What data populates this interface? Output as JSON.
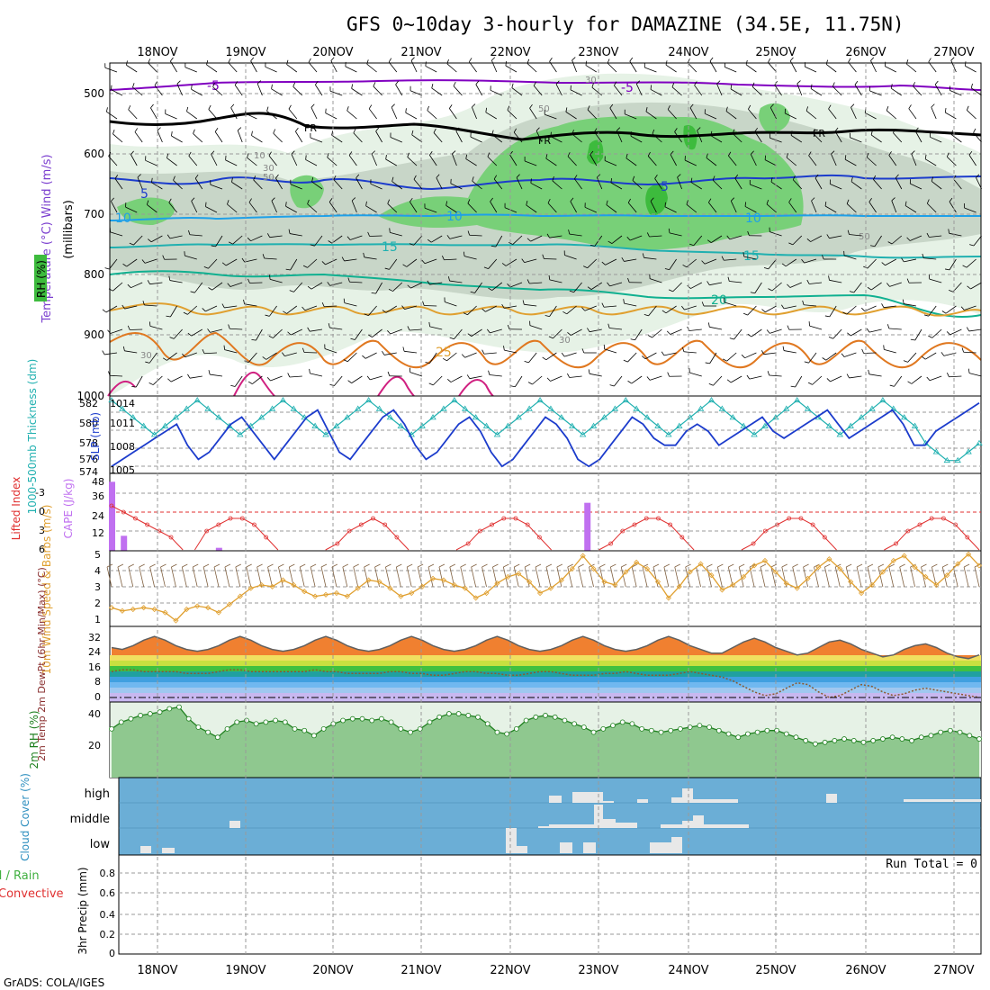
{
  "title": "GFS 0~10day 3-hourly for DAMAZINE (34.5E, 11.75N)",
  "footer": "GrADS: COLA/IGES",
  "run_total": "Run Total = 0",
  "date_labels": [
    "18NOV",
    "19NOV",
    "20NOV",
    "21NOV",
    "22NOV",
    "23NOV",
    "24NOV",
    "25NOV",
    "26NOV",
    "27NOV"
  ],
  "colors": {
    "rh_light": "#e5f2e5",
    "rh_mid": "#c8d6c8",
    "rh_green": "#78d078",
    "rh_dark": "#3dbb3d",
    "cloud_blue": "#6baed6",
    "purple": "#8000c0",
    "thick_cyan": "#20b0b0",
    "slp_blue": "#1c3ccc",
    "lifted_red": "#e03030",
    "cape_purple": "#c070f0",
    "wind_orange": "#e0a030"
  },
  "chart_data": [
    {
      "type": "area",
      "panel": "pressure-time cross section",
      "ylabel": "Temperature (°C)  Wind (m/s)",
      "ylabel2": "(millibars)",
      "legend": "RH (%)",
      "yticks": [
        "500",
        "600",
        "700",
        "800",
        "900",
        "1000"
      ],
      "ylim": [
        1000,
        450
      ],
      "temperature_isotherm_labels": [
        "-5",
        "FR",
        "5",
        "10",
        "15",
        "20",
        "25"
      ],
      "rh_contour_labels": [
        "30",
        "50",
        "10",
        "30",
        "50",
        "50",
        "30",
        "30"
      ]
    },
    {
      "type": "line",
      "panel": "thickness and sea level pressure",
      "ylabel_left": "1000-500mb Thickness (dm)",
      "ylabel_right": "SLP (mb)",
      "yticks_left": [
        "582",
        "580",
        "578",
        "576",
        "574"
      ],
      "yticks_right": [
        "1014",
        "1011",
        "1008",
        "1005"
      ],
      "series": [
        {
          "name": "Thickness",
          "units": "dm",
          "values": [
            582,
            581,
            580,
            579,
            578,
            579,
            580,
            581,
            582,
            581,
            580,
            579,
            578,
            579,
            580,
            581,
            582,
            581,
            580,
            579,
            578,
            579,
            580,
            581,
            582,
            581,
            580,
            579,
            578,
            579,
            580,
            581,
            582,
            581,
            580,
            579,
            578,
            579,
            580,
            581,
            582,
            581,
            580,
            579,
            578,
            579,
            580,
            581,
            582,
            581,
            580,
            579,
            578,
            579,
            580,
            581,
            582,
            581,
            580,
            579,
            578,
            579,
            580,
            581,
            582,
            581,
            580,
            579,
            578,
            579,
            580,
            581,
            582,
            581,
            580,
            579,
            577,
            576,
            575,
            575,
            576,
            577
          ]
        },
        {
          "name": "SLP",
          "units": "mb",
          "values": [
            1005,
            1006,
            1007,
            1008,
            1009,
            1010,
            1011,
            1008,
            1006,
            1007,
            1009,
            1011,
            1012,
            1010,
            1008,
            1006,
            1008,
            1010,
            1012,
            1013,
            1010,
            1007,
            1006,
            1008,
            1010,
            1012,
            1013,
            1011,
            1008,
            1006,
            1007,
            1009,
            1011,
            1012,
            1010,
            1007,
            1005,
            1006,
            1008,
            1010,
            1012,
            1011,
            1009,
            1006,
            1005,
            1006,
            1008,
            1010,
            1012,
            1011,
            1009,
            1008,
            1008,
            1010,
            1011,
            1010,
            1008,
            1009,
            1010,
            1011,
            1012,
            1010,
            1009,
            1010,
            1011,
            1012,
            1013,
            1011,
            1009,
            1010,
            1011,
            1012,
            1013,
            1011,
            1008,
            1008,
            1010,
            1011,
            1012,
            1013,
            1014
          ]
        }
      ]
    },
    {
      "type": "bar",
      "panel": "lifted index and CAPE",
      "ylabel_left": "Lifted Index",
      "ylabel_right": "CAPE (J/kg)",
      "yticks_left": [
        "-3",
        "0",
        "3",
        "6"
      ],
      "yticks_right": [
        "48",
        "36",
        "24",
        "12"
      ],
      "cape_bars": [
        {
          "time_index": 0,
          "value": 46
        },
        {
          "time_index": 1,
          "value": 10
        },
        {
          "time_index": 9,
          "value": 2
        },
        {
          "time_index": 40,
          "value": 32
        }
      ],
      "lifted_index": [
        -1,
        0,
        1,
        2,
        3,
        4,
        6,
        6,
        3,
        2,
        1,
        1,
        2,
        4,
        6,
        6,
        6,
        6,
        6,
        5,
        3,
        2,
        1,
        2,
        4,
        6,
        6,
        6,
        6,
        6,
        5,
        3,
        2,
        1,
        1,
        2,
        4,
        6,
        6,
        6,
        6,
        6,
        5,
        3,
        2,
        1,
        1,
        2,
        4,
        6,
        6,
        6,
        6,
        6,
        5,
        3,
        2,
        1,
        1,
        2,
        4,
        6,
        6,
        6,
        6,
        6,
        5,
        3,
        2,
        1,
        1,
        2,
        4,
        6
      ]
    },
    {
      "type": "line",
      "panel": "10m wind",
      "ylabel": "10m Wind Speed & Barbs (m/s)",
      "yticks": [
        "5",
        "4",
        "3",
        "2",
        "1"
      ],
      "series": [
        {
          "name": "10m Wind Speed",
          "units": "m/s",
          "values": [
            1.6,
            1.4,
            1.5,
            1.6,
            1.5,
            1.3,
            0.8,
            1.5,
            1.7,
            1.6,
            1.3,
            1.8,
            2.3,
            2.8,
            3.0,
            2.9,
            3.3,
            3.0,
            2.6,
            2.3,
            2.4,
            2.5,
            2.3,
            2.8,
            3.3,
            3.2,
            2.8,
            2.3,
            2.5,
            2.9,
            3.4,
            3.3,
            3.0,
            2.8,
            2.2,
            2.5,
            3.1,
            3.5,
            3.7,
            3.2,
            2.5,
            2.8,
            3.3,
            4.0,
            4.8,
            4.0,
            3.2,
            3.0,
            3.8,
            4.4,
            4.0,
            3.2,
            2.2,
            2.9,
            3.8,
            4.3,
            3.6,
            2.7,
            3.0,
            3.5,
            4.2,
            4.5,
            3.8,
            3.1,
            2.8,
            3.4,
            4.1,
            4.6,
            4.0,
            3.2,
            2.5,
            3.0,
            3.8,
            4.5,
            4.8,
            4.1,
            3.5,
            3.0,
            3.6,
            4.3,
            4.9,
            4.2
          ]
        }
      ]
    },
    {
      "type": "area",
      "panel": "2m temperature and dewpoint",
      "ylabel": "2m Temp 2m DewPt (6hr Min/Max) (°C)",
      "yticks": [
        "32",
        "24",
        "16",
        "8",
        "0"
      ],
      "series": [
        {
          "name": "2m Temp",
          "units": "°C",
          "values": [
            27,
            26,
            28,
            31,
            33,
            31,
            28,
            26,
            25,
            26,
            28,
            31,
            33,
            31,
            28,
            26,
            25,
            26,
            28,
            31,
            33,
            31,
            28,
            26,
            25,
            26,
            28,
            31,
            33,
            31,
            28,
            26,
            25,
            26,
            28,
            31,
            33,
            31,
            28,
            26,
            25,
            26,
            28,
            31,
            33,
            31,
            28,
            26,
            25,
            26,
            28,
            31,
            33,
            31,
            28,
            26,
            24,
            24,
            27,
            30,
            32,
            30,
            27,
            25,
            23,
            24,
            27,
            30,
            31,
            29,
            26,
            24,
            22,
            23,
            26,
            28,
            29,
            27,
            24,
            22,
            21,
            23
          ]
        },
        {
          "name": "2m DewPt",
          "units": "°C",
          "values": [
            14,
            15,
            15,
            14,
            14,
            14,
            14,
            13,
            13,
            13,
            14,
            15,
            15,
            14,
            14,
            14,
            14,
            14,
            14,
            15,
            14,
            14,
            13,
            13,
            13,
            13,
            14,
            14,
            13,
            13,
            12,
            12,
            13,
            14,
            14,
            13,
            13,
            12,
            12,
            13,
            14,
            14,
            13,
            12,
            12,
            12,
            13,
            13,
            14,
            13,
            12,
            12,
            12,
            13,
            14,
            13,
            12,
            11,
            9,
            6,
            3,
            1,
            2,
            5,
            8,
            7,
            3,
            0,
            1,
            4,
            7,
            6,
            3,
            1,
            2,
            4,
            5,
            4,
            3,
            2,
            1,
            0
          ]
        }
      ]
    },
    {
      "type": "line",
      "panel": "2m relative humidity",
      "ylabel": "2m RH (%)",
      "yticks": [
        "40",
        "20"
      ],
      "series": [
        {
          "name": "2m RH",
          "units": "%",
          "values": [
            29,
            33,
            35,
            37,
            38,
            39,
            41,
            42,
            35,
            30,
            27,
            24,
            29,
            33,
            34,
            32,
            33,
            34,
            33,
            29,
            28,
            25,
            29,
            32,
            34,
            35,
            35,
            34,
            35,
            33,
            29,
            27,
            29,
            33,
            36,
            38,
            38,
            37,
            36,
            32,
            27,
            26,
            29,
            34,
            36,
            37,
            36,
            34,
            32,
            30,
            27,
            29,
            31,
            33,
            32,
            29,
            28,
            27,
            28,
            29,
            30,
            31,
            30,
            28,
            26,
            24,
            26,
            27,
            28,
            28,
            26,
            24,
            22,
            20,
            21,
            22,
            23,
            22,
            21,
            22,
            23,
            24,
            23,
            22,
            24,
            25,
            27,
            28,
            27,
            25,
            23
          ]
        }
      ]
    },
    {
      "type": "heatmap",
      "panel": "cloud cover",
      "ylabel": "Cloud Cover (%)",
      "rows": [
        "high",
        "middle",
        "low"
      ]
    },
    {
      "type": "bar",
      "panel": "3hr precipitation",
      "ylabel": "3hr Precip (mm)",
      "legend": [
        "Total / Rain",
        "Convective"
      ],
      "yticks": [
        "0.8",
        "0.6",
        "0.4",
        "0.2",
        "0"
      ],
      "ylim": [
        0,
        0.9
      ],
      "values": [],
      "run_total": 0
    }
  ]
}
